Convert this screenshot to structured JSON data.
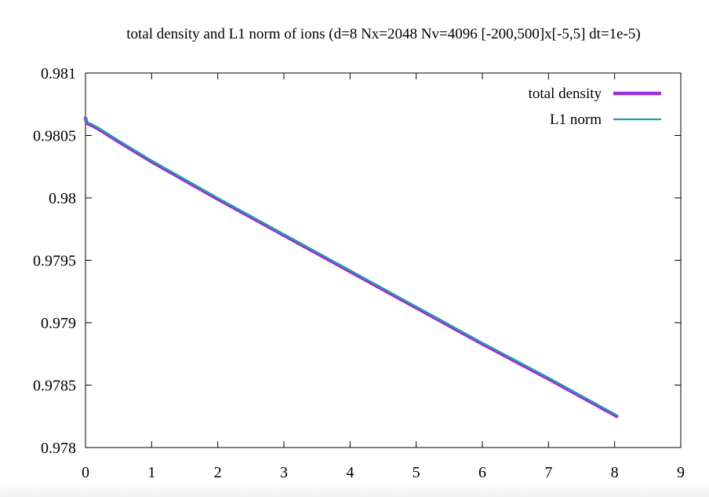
{
  "chart_data": {
    "type": "line",
    "title": "total density and L1 norm of ions (d=8 Nx=2048 Nv=4096 [-200,500]x[-5,5] dt=1e-5)",
    "xlabel": "",
    "ylabel": "",
    "xlim": [
      0,
      9
    ],
    "ylim": [
      0.978,
      0.981
    ],
    "x_ticks": [
      "0",
      "1",
      "2",
      "3",
      "4",
      "5",
      "6",
      "7",
      "8",
      "9"
    ],
    "y_ticks": [
      "0.978",
      "0.9785",
      "0.979",
      "0.9795",
      "0.98",
      "0.9805",
      "0.981"
    ],
    "grid": false,
    "legend_position": "top-right",
    "series": [
      {
        "name": "total density",
        "color": "#9b30d9",
        "x": [
          0,
          0.01,
          0.02,
          0.05,
          0.1,
          0.2,
          0.5,
          1,
          2,
          3,
          4,
          5,
          6,
          7,
          8,
          8.03
        ],
        "y": [
          0.98064,
          0.98062,
          0.9806,
          0.98059,
          0.98058,
          0.98055,
          0.98045,
          0.98029,
          0.97999,
          0.9797,
          0.97941,
          0.97912,
          0.97883,
          0.97855,
          0.97826,
          0.97825
        ]
      },
      {
        "name": "L1 norm",
        "color": "#1fa2a0",
        "x": [
          0,
          0.01,
          0.02,
          0.05,
          0.1,
          0.2,
          0.5,
          1,
          2,
          3,
          4,
          5,
          6,
          7,
          8,
          8.03
        ],
        "y": [
          0.98065,
          0.98063,
          0.98061,
          0.9806,
          0.98059,
          0.98056,
          0.98046,
          0.9803,
          0.98,
          0.97971,
          0.97942,
          0.97913,
          0.97884,
          0.97856,
          0.97827,
          0.97826
        ]
      }
    ]
  }
}
